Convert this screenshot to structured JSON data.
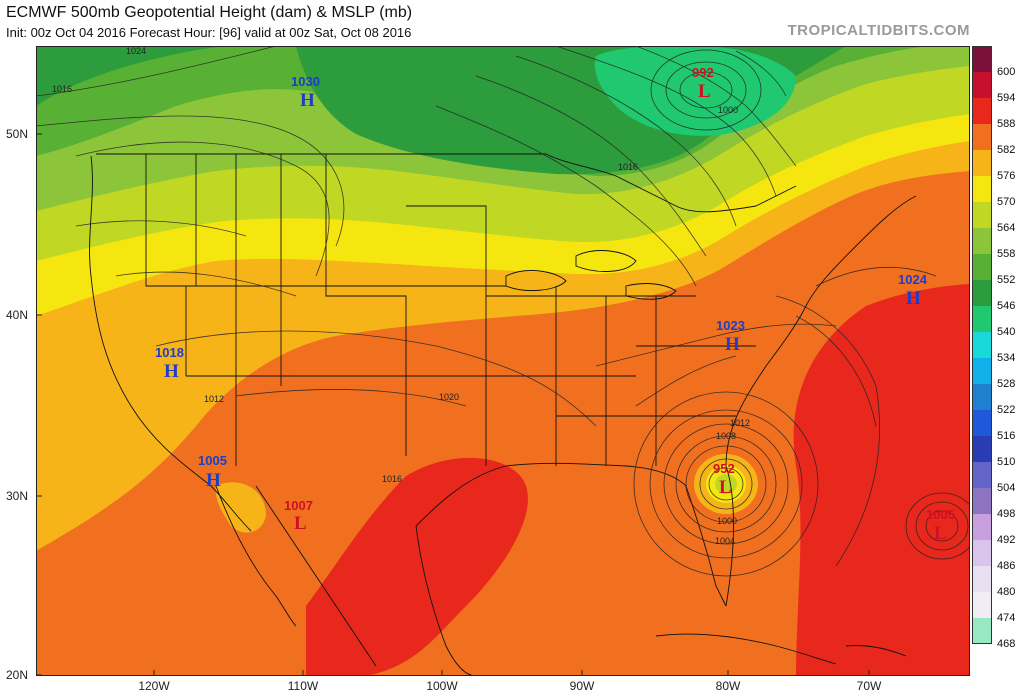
{
  "header": {
    "title": "ECMWF 500mb Geopotential Height (dam) & MSLP (mb)",
    "subtitle": "Init: 00z Oct 04 2016   Forecast Hour: [96]   valid at 00z Sat, Oct 08 2016",
    "brand": "TROPICALTIDBITS.COM"
  },
  "axes": {
    "lat_labels": [
      "50N",
      "40N",
      "30N",
      "20N"
    ],
    "lon_labels": [
      "120W",
      "110W",
      "100W",
      "90W",
      "80W",
      "70W"
    ]
  },
  "colorbar": {
    "levels": [
      "600",
      "594",
      "588",
      "582",
      "576",
      "570",
      "564",
      "558",
      "552",
      "546",
      "540",
      "534",
      "528",
      "522",
      "516",
      "510",
      "504",
      "498",
      "492",
      "486",
      "480",
      "474",
      "468"
    ],
    "colors": [
      "#7b1038",
      "#c8102e",
      "#e8281c",
      "#f07020",
      "#f6b418",
      "#f6e610",
      "#c0d824",
      "#8cc43a",
      "#58b034",
      "#2c9c3c",
      "#20c870",
      "#18d8d8",
      "#10b0e8",
      "#2080d0",
      "#1f58d8",
      "#2a3cb4",
      "#6464c8",
      "#8c74c0",
      "#c8a0e0",
      "#d8c4ec",
      "#e8e0f0",
      "#f0eef4",
      "#98e8c4"
    ]
  },
  "pressure_centers": [
    {
      "value": "1030",
      "letter": "H",
      "kind": "high"
    },
    {
      "value": "992",
      "letter": "L",
      "kind": "low"
    },
    {
      "value": "1018",
      "letter": "H",
      "kind": "high"
    },
    {
      "value": "1023",
      "letter": "H",
      "kind": "high"
    },
    {
      "value": "1024",
      "letter": "H",
      "kind": "high"
    },
    {
      "value": "1005",
      "letter": "H",
      "kind": "high"
    },
    {
      "value": "1007",
      "letter": "L",
      "kind": "low"
    },
    {
      "value": "952",
      "letter": "L",
      "kind": "low"
    },
    {
      "value": "1005",
      "letter": "L",
      "kind": "low"
    }
  ],
  "isobar_labels": [
    "1024",
    "1016",
    "1012",
    "1016",
    "1020",
    "1012",
    "1008",
    "1000",
    "1004",
    "1000",
    "1016"
  ],
  "colors": {
    "high": "#1c3ec8",
    "low": "#d01020",
    "brand": "#9a9a9a"
  }
}
